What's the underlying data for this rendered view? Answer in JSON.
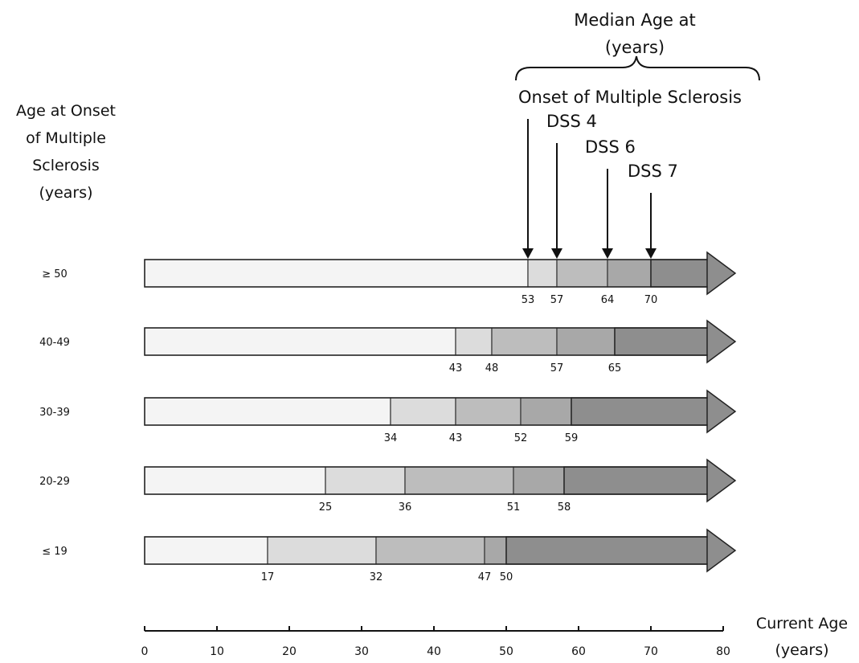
{
  "chart_data": {
    "type": "bar",
    "header": {
      "line1": "Median Age at",
      "line2": "(years)"
    },
    "ylabel": [
      "Age at Onset",
      "of Multiple",
      "Sclerosis",
      "(years)"
    ],
    "xlabel": [
      "Current Age",
      "(years)"
    ],
    "xlim": [
      0,
      80
    ],
    "xticks": [
      "0",
      "10",
      "20",
      "30",
      "40",
      "50",
      "60",
      "70",
      "80"
    ],
    "milestones": [
      "Onset of Multiple Sclerosis",
      "DSS 4",
      "DSS 6",
      "DSS 7"
    ],
    "series": [
      {
        "name": "≥ 50",
        "values": [
          53,
          57,
          64,
          70
        ]
      },
      {
        "name": "40-49",
        "values": [
          43,
          48,
          57,
          65
        ]
      },
      {
        "name": "30-39",
        "values": [
          34,
          43,
          52,
          59
        ]
      },
      {
        "name": "20-29",
        "values": [
          25,
          36,
          51,
          58
        ]
      },
      {
        "name": "≤ 19",
        "values": [
          17,
          32,
          47,
          50
        ]
      }
    ],
    "colors": [
      "#f4f4f4",
      "#dcdcdc",
      "#bdbdbd",
      "#a8a8a8",
      "#8e8e8e"
    ]
  }
}
